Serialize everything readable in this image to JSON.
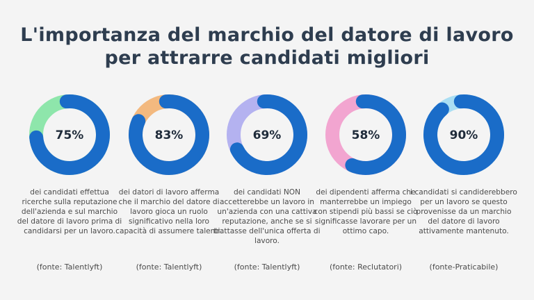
{
  "title": "L'importanza del marchio del datore di lavoro per attrarre candidati migliori",
  "colors": {
    "primary": "#1a6cc8",
    "title": "#2e3d4f"
  },
  "chart_data": {
    "type": "pie",
    "items": [
      {
        "value": 75,
        "label": "75%",
        "accent": "#8ee6ab",
        "text": "dei candidati effettua ricerche sulla reputazione dell'azienda e sul marchio del datore di lavoro prima di candidarsi per un lavoro.",
        "source": "(fonte: Talentlyft)"
      },
      {
        "value": 83,
        "label": "83%",
        "accent": "#f3b97f",
        "text": "dei datori di lavoro afferma che il marchio del datore di lavoro gioca un ruolo significativo nella loro capacità di assumere talenti.",
        "source": "(fonte: Talentlyft)"
      },
      {
        "value": 69,
        "label": "69%",
        "accent": "#b4b2f0",
        "text": "dei candidati NON accetterebbe un lavoro in un'azienda con una cattiva reputazione, anche se si trattasse dell'unica offerta di lavoro.",
        "source": "(fonte: Talentlyft)"
      },
      {
        "value": 58,
        "label": "58%",
        "accent": "#f2a5d0",
        "text": "dei dipendenti afferma che manterrebbe un impiego con stipendi più bassi se ciò significasse lavorare per un ottimo capo.",
        "source": "(fonte: Reclutatori)"
      },
      {
        "value": 90,
        "label": "90%",
        "accent": "#a9def3",
        "text": "i candidati si candiderebbero per un lavoro se questo provenisse da un marchio del datore di lavoro attivamente mantenuto.",
        "source": "(fonte-Praticabile)"
      }
    ]
  }
}
